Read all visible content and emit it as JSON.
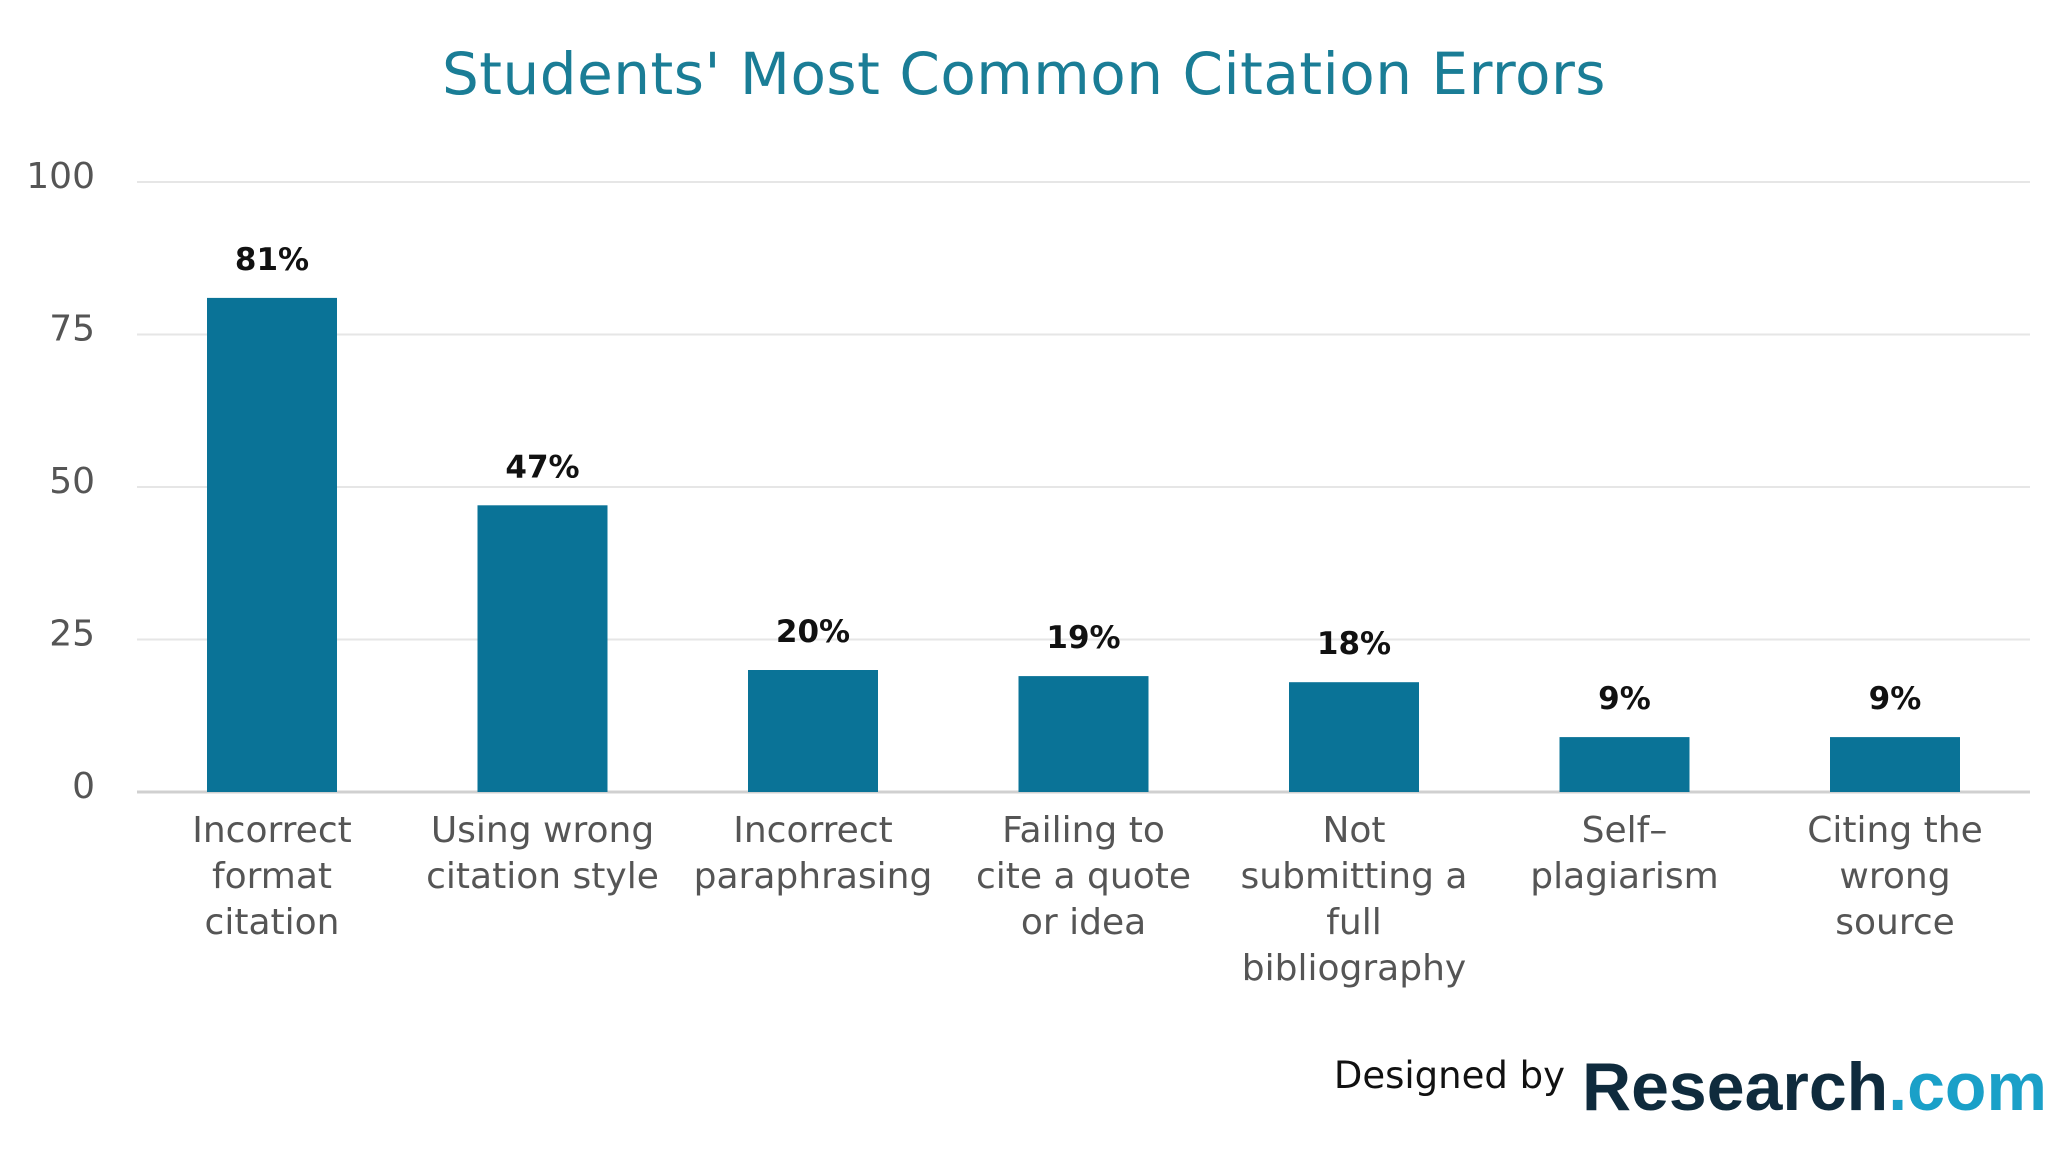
{
  "chart_data": {
    "type": "bar",
    "title": "Students' Most Common Citation Errors",
    "xlabel": "",
    "ylabel": "",
    "categories": [
      [
        "Incorrect",
        "format",
        "citation"
      ],
      [
        "Using wrong",
        "citation style"
      ],
      [
        "Incorrect",
        "paraphrasing"
      ],
      [
        "Failing to",
        "cite a quote",
        "or idea"
      ],
      [
        "Not",
        "submitting a",
        "full",
        "bibliography"
      ],
      [
        "Self–",
        "plagiarism"
      ],
      [
        "Citing the",
        "wrong",
        "source"
      ]
    ],
    "values": [
      81,
      47,
      20,
      19,
      18,
      9,
      9
    ],
    "data_labels": [
      "81%",
      "47%",
      "20%",
      "19%",
      "18%",
      "9%",
      "9%"
    ],
    "ylim": [
      0,
      100
    ],
    "yticks": [
      0,
      25,
      50,
      75,
      100
    ],
    "grid": true,
    "legend": "none",
    "bar_color": "#0a7397",
    "title_color": "#1a7d96"
  },
  "credit": {
    "prefix": "Designed by",
    "brand": "Research",
    "tld": ".com"
  }
}
